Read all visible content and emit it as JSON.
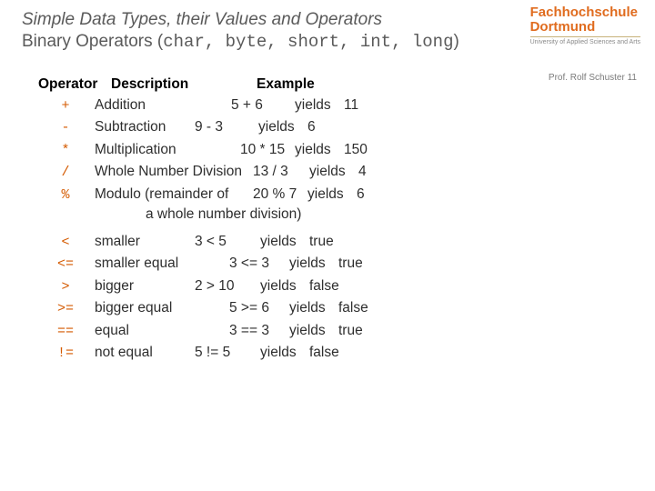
{
  "logo": {
    "line1": "Fachhochschule",
    "line2": "Dortmund",
    "line3": "University of Applied Sciences and Arts",
    "color": "#e06c1f"
  },
  "author": "Prof. Rolf Schuster   11",
  "title": {
    "sup": "Simple Data Types, their Values and Operators",
    "main_pre": "Binary Operators (",
    "types": "char, byte, short, int, long",
    "main_post": ")"
  },
  "header": {
    "op": "Operator",
    "desc": "Description",
    "ex": "Example"
  },
  "rows": [
    {
      "op": "+",
      "desc": "Addition",
      "ex": "5 + 6",
      "yield": "yields",
      "res": "11",
      "descW": 150,
      "exW": 70
    },
    {
      "op": "-",
      "desc": "Subtraction",
      "ex": "9 - 3",
      "yield": "yields",
      "res": "6",
      "descW": 110,
      "exW": 70
    },
    {
      "op": "*",
      "desc": "Multiplication",
      "ex": "10 * 15",
      "yield": "yields",
      "res": "150",
      "descW": 160,
      "exW": 60
    },
    {
      "op": "/",
      "desc": "Whole Number Division",
      "ex": "13 / 3",
      "yield": "yields",
      "res": "4",
      "descW": 174,
      "exW": 62
    },
    {
      "op": "%",
      "desc": "Modulo (remainder of",
      "ex": "20 % 7",
      "yield": "yields",
      "res": "6",
      "descW": 174,
      "exW": 60,
      "sub": "a whole number division)"
    },
    {
      "op": "<",
      "desc": "smaller",
      "ex": "3 < 5",
      "yield": "yields",
      "res": "true",
      "descW": 110,
      "exW": 72
    },
    {
      "op": "<=",
      "desc": "smaller equal",
      "ex": "3 <= 3",
      "yield": "yields",
      "res": "true",
      "descW": 148,
      "exW": 66
    },
    {
      "op": ">",
      "desc": "bigger",
      "ex": "2 > 10",
      "yield": "yields",
      "res": "false",
      "descW": 110,
      "exW": 72
    },
    {
      "op": ">=",
      "desc": "bigger equal",
      "ex": "5 >= 6",
      "yield": "yields",
      "res": "false",
      "descW": 148,
      "exW": 66
    },
    {
      "op": "==",
      "desc": "equal",
      "ex": "3 == 3",
      "yield": "yields",
      "res": "true",
      "descW": 148,
      "exW": 66
    },
    {
      "op": "!=",
      "desc": "not equal",
      "ex": "5 != 5",
      "yield": "yields",
      "res": "false",
      "descW": 110,
      "exW": 72
    }
  ]
}
